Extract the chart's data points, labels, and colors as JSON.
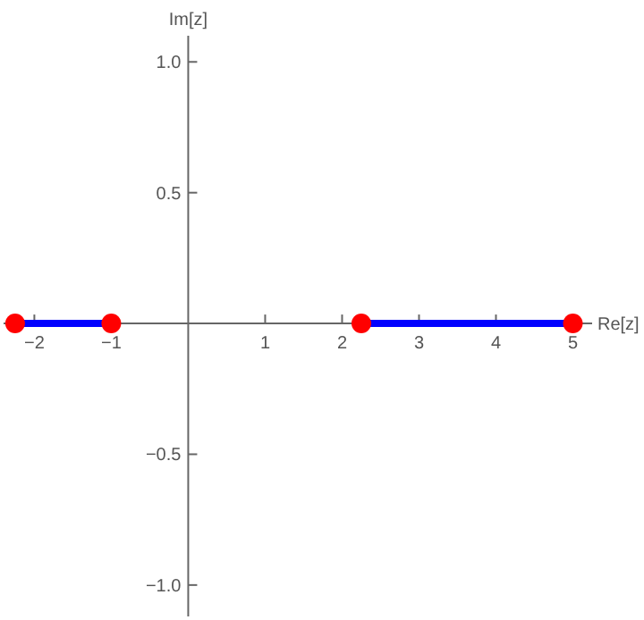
{
  "chart_data": {
    "type": "line",
    "xlabel": "Re[z]",
    "ylabel": "Im[z]",
    "xlim": [
      -2.4,
      5.25
    ],
    "ylim": [
      -1.12,
      1.1
    ],
    "xticks": [
      {
        "value": -2,
        "label": "−2"
      },
      {
        "value": -1,
        "label": "−1"
      },
      1,
      2,
      3,
      4,
      5
    ],
    "yticks": [
      {
        "value": -1,
        "label": "−1.0"
      },
      {
        "value": -0.5,
        "label": "−0.5"
      },
      {
        "value": 0.5,
        "label": "0.5"
      },
      {
        "value": 1,
        "label": "1.0"
      }
    ],
    "line_style": "solid",
    "series": [
      {
        "color": "#0000ff",
        "x": [
          -2.25,
          -1
        ],
        "values": [
          0,
          0
        ]
      },
      {
        "color": "#0000ff",
        "x": [
          2.25,
          5
        ],
        "values": [
          0,
          0
        ]
      },
      {
        "type": "scatter",
        "color": "#ff0000",
        "marker": "circle",
        "x": [
          -2.25,
          -1,
          2.25,
          5
        ],
        "values": [
          0,
          0,
          0,
          0
        ]
      }
    ]
  }
}
